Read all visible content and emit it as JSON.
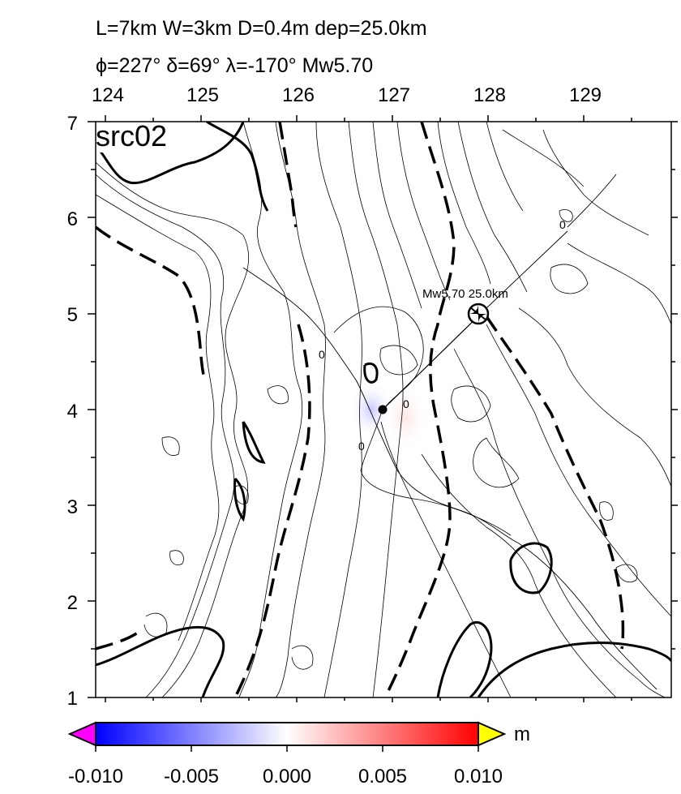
{
  "title": {
    "line1": "L=7km W=3km D=0.4m dep=25.0km",
    "line2": "ϕ=227° δ=69° λ=-170° Mw5.70"
  },
  "panel_label": "src02",
  "axes": {
    "x_ticks": [
      "124",
      "125",
      "126",
      "127",
      "128",
      "129"
    ],
    "y_ticks": [
      "7",
      "6",
      "5",
      "4",
      "3",
      "2",
      "1"
    ],
    "x_range": [
      123.9,
      129.9
    ],
    "y_range": [
      1,
      7
    ]
  },
  "source": {
    "label": "Mw5.70 25.0km",
    "epicenter_lon": 128.0,
    "epicenter_lat": 5.0,
    "fault_point_lon": 126.9,
    "fault_point_lat": 4.0
  },
  "contour_labels": [
    "0",
    "0",
    "0",
    "0"
  ],
  "colorbar": {
    "unit": "m",
    "ticks": [
      "-0.010",
      "-0.005",
      "0.000",
      "0.005",
      "0.010"
    ],
    "range": [
      -0.01,
      0.01
    ],
    "colors": {
      "low_overflow": "#ff00ff",
      "low": "#0000ff",
      "mid": "#ffffff",
      "high": "#ff0000",
      "high_overflow": "#ffff00"
    }
  }
}
